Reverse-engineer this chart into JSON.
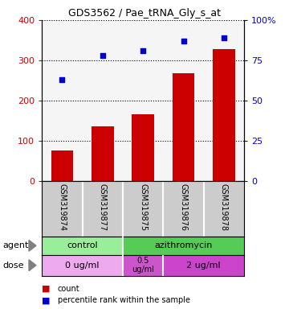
{
  "title": "GDS3562 / Pae_tRNA_Gly_s_at",
  "samples": [
    "GSM319874",
    "GSM319877",
    "GSM319875",
    "GSM319876",
    "GSM319878"
  ],
  "counts": [
    75,
    135,
    165,
    268,
    328
  ],
  "percentiles": [
    63,
    78,
    81,
    87,
    89
  ],
  "bar_color": "#cc0000",
  "dot_color": "#0000cc",
  "ylim_left": [
    0,
    400
  ],
  "ylim_right": [
    0,
    100
  ],
  "yticks_left": [
    0,
    100,
    200,
    300,
    400
  ],
  "yticks_right": [
    0,
    25,
    50,
    75,
    100
  ],
  "yticklabels_right": [
    "0",
    "25",
    "50",
    "75",
    "100%"
  ],
  "tick_label_color_left": "#cc0000",
  "tick_label_color_right": "#0000cc",
  "agent_color_control": "#99ee99",
  "agent_color_azithromycin": "#55cc55",
  "dose_color_0": "#eeaaee",
  "dose_color_05": "#cc55cc",
  "dose_color_2": "#cc44cc",
  "sample_bg_color": "#cccccc",
  "plot_bg_color": "#f5f5f5"
}
